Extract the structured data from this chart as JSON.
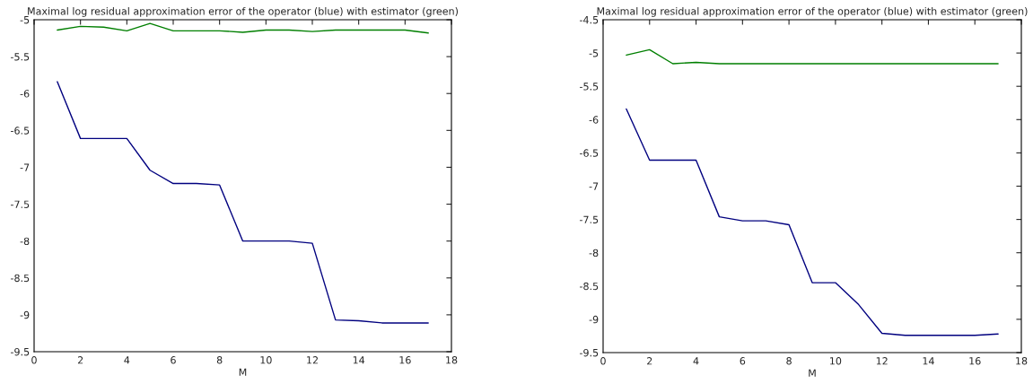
{
  "chart_data": [
    {
      "type": "line",
      "title": "Maximal log residual approximation error of the operator (blue) with estimator (green)",
      "xlabel": "M",
      "x": [
        1,
        2,
        3,
        4,
        5,
        6,
        7,
        8,
        9,
        10,
        11,
        12,
        13,
        14,
        15,
        16,
        17
      ],
      "series": [
        {
          "color": "#00007f",
          "values": [
            -5.84,
            -6.61,
            -6.61,
            -6.61,
            -7.04,
            -7.22,
            -7.22,
            -7.24,
            -8.0,
            -8.0,
            -8.0,
            -8.03,
            -9.07,
            -9.08,
            -9.11,
            -9.11,
            -9.11
          ]
        },
        {
          "color": "#007f00",
          "values": [
            -5.14,
            -5.09,
            -5.1,
            -5.15,
            -5.05,
            -5.15,
            -5.15,
            -5.15,
            -5.17,
            -5.14,
            -5.14,
            -5.16,
            -5.14,
            -5.14,
            -5.14,
            -5.14,
            -5.18
          ]
        }
      ],
      "xlim": [
        0,
        18
      ],
      "xticks": [
        0,
        2,
        4,
        6,
        8,
        10,
        12,
        14,
        16,
        18
      ],
      "ylim": [
        -9.5,
        -5
      ],
      "yticks": [
        -9.5,
        -9,
        -8.5,
        -8,
        -7.5,
        -7,
        -6.5,
        -6,
        -5.5,
        -5
      ],
      "grid": false
    },
    {
      "type": "line",
      "title": "Maximal log residual approximation error of the operator (blue) with estimator (green)",
      "xlabel": "M",
      "x": [
        1,
        2,
        3,
        4,
        5,
        6,
        7,
        8,
        9,
        10,
        11,
        12,
        13,
        14,
        15,
        16,
        17
      ],
      "series": [
        {
          "color": "#00007f",
          "values": [
            -5.84,
            -6.61,
            -6.61,
            -6.61,
            -7.46,
            -7.52,
            -7.52,
            -7.58,
            -8.45,
            -8.45,
            -8.78,
            -9.21,
            -9.24,
            -9.24,
            -9.24,
            -9.24,
            -9.22
          ]
        },
        {
          "color": "#007f00",
          "values": [
            -5.03,
            -4.95,
            -5.16,
            -5.14,
            -5.16,
            -5.16,
            -5.16,
            -5.16,
            -5.16,
            -5.16,
            -5.16,
            -5.16,
            -5.16,
            -5.16,
            -5.16,
            -5.16,
            -5.16
          ]
        }
      ],
      "xlim": [
        0,
        18
      ],
      "xticks": [
        0,
        2,
        4,
        6,
        8,
        10,
        12,
        14,
        16,
        18
      ],
      "ylim": [
        -9.5,
        -4.5
      ],
      "yticks": [
        -9.5,
        -9,
        -8.5,
        -8,
        -7.5,
        -7,
        -6.5,
        -6,
        -5.5,
        -5,
        -4.5
      ],
      "grid": false
    }
  ]
}
